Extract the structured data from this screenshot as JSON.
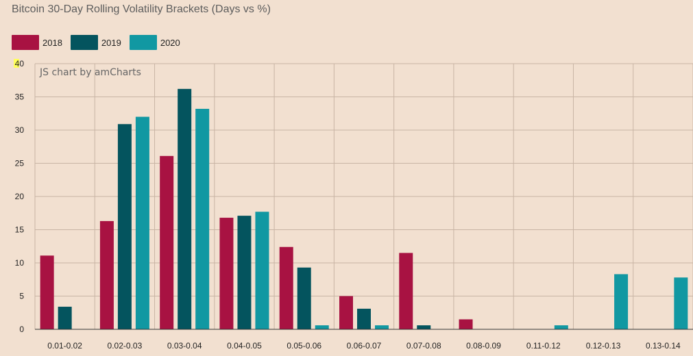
{
  "colors": {
    "background": "#f2e0d0",
    "s2018": "#a81242",
    "s2019": "#04545e",
    "s2020": "#1198a2",
    "grid": "#c8b4a4"
  },
  "credit": "JS chart by amCharts",
  "chart_data": {
    "type": "bar",
    "title": "Bitcoin 30-Day Rolling Volatility Brackets (Days vs %)",
    "xlabel": "",
    "ylabel": "",
    "ylim": [
      0,
      40
    ],
    "yticks": [
      0,
      5,
      10,
      15,
      20,
      25,
      30,
      35,
      40
    ],
    "grid": true,
    "legend_position": "top-left",
    "categories": [
      "0.01-0.02",
      "0.02-0.03",
      "0.03-0.04",
      "0.04-0.05",
      "0.05-0.06",
      "0.06-0.07",
      "0.07-0.08",
      "0.08-0.09",
      "0.11-0.12",
      "0.12-0.13",
      "0.13-0.14"
    ],
    "series": [
      {
        "name": "2018",
        "color": "#a81242",
        "values": [
          11.1,
          16.3,
          26.1,
          16.8,
          12.4,
          5.0,
          11.5,
          1.5,
          0,
          0,
          0
        ]
      },
      {
        "name": "2019",
        "color": "#04545e",
        "values": [
          3.4,
          30.9,
          36.2,
          17.1,
          9.3,
          3.1,
          0.6,
          0,
          0,
          0,
          0
        ]
      },
      {
        "name": "2020",
        "color": "#1198a2",
        "values": [
          0,
          32.0,
          33.2,
          17.7,
          0.6,
          0.6,
          0,
          0,
          0.6,
          8.3,
          7.8
        ]
      }
    ]
  }
}
